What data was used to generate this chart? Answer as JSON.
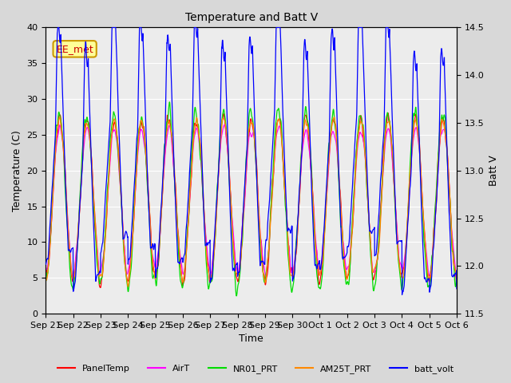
{
  "title": "Temperature and Batt V",
  "xlabel": "Time",
  "ylabel_left": "Temperature (C)",
  "ylabel_right": "Batt V",
  "annotation": "EE_met",
  "ylim_left": [
    0,
    40
  ],
  "ylim_right": [
    11.5,
    14.5
  ],
  "xticklabels": [
    "Sep 21",
    "Sep 22",
    "Sep 23",
    "Sep 24",
    "Sep 25",
    "Sep 26",
    "Sep 27",
    "Sep 28",
    "Sep 29",
    "Sep 30",
    "Oct 1",
    "Oct 2",
    "Oct 3",
    "Oct 4",
    "Oct 5",
    "Oct 6"
  ],
  "legend": [
    {
      "label": "PanelTemp",
      "color": "#ff0000"
    },
    {
      "label": "AirT",
      "color": "#ff00ff"
    },
    {
      "label": "NR01_PRT",
      "color": "#00dd00"
    },
    {
      "label": "AM25T_PRT",
      "color": "#ff8800"
    },
    {
      "label": "batt_volt",
      "color": "#0000ff"
    }
  ],
  "bg_color": "#d8d8d8",
  "plot_bg": "#ececec",
  "grid_color": "#ffffff",
  "n_days": 15,
  "pts_per_day": 144,
  "annotation_facecolor": "#ffff99",
  "annotation_edgecolor": "#cc9900",
  "annotation_textcolor": "#cc0000",
  "title_fontsize": 10,
  "axis_fontsize": 9,
  "tick_fontsize": 8,
  "legend_fontsize": 8
}
